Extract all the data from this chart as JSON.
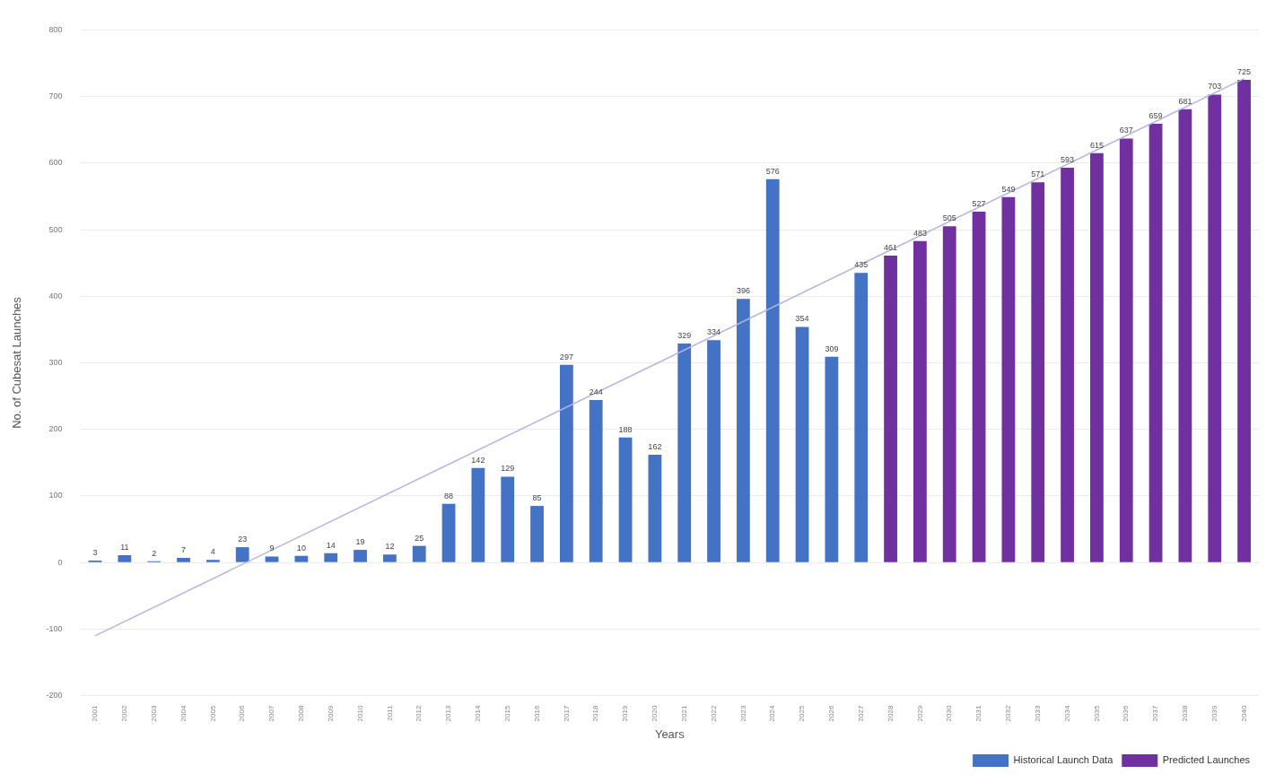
{
  "chart_data": {
    "type": "bar",
    "xlabel": "Years",
    "ylabel": "No. of Cubesat Launches",
    "categories": [
      "2001",
      "2002",
      "2003",
      "2004",
      "2005",
      "2006",
      "2007",
      "2008",
      "2009",
      "2010",
      "2011",
      "2012",
      "2013",
      "2014",
      "2015",
      "2016",
      "2017",
      "2018",
      "2019",
      "2020",
      "2021",
      "2022",
      "2023",
      "2024",
      "2025",
      "2026",
      "2027",
      "2028",
      "2029",
      "2030",
      "2031",
      "2032",
      "2033",
      "2034",
      "2035",
      "2036",
      "2037",
      "2038",
      "2039",
      "2040"
    ],
    "series": [
      {
        "name": "Historical Launch Data",
        "color": "#4472c4",
        "values": [
          3,
          11,
          2,
          7,
          4,
          23,
          9,
          10,
          14,
          19,
          12,
          25,
          88,
          142,
          129,
          85,
          297,
          244,
          188,
          162,
          329,
          334,
          396,
          576,
          354,
          309,
          435,
          null,
          null,
          null,
          null,
          null,
          null,
          null,
          null,
          null,
          null,
          null,
          null,
          null
        ],
        "value_labels": [
          "3",
          "11",
          "2",
          "7",
          "4",
          "23",
          "9",
          "10",
          "14",
          "19",
          "12",
          "25",
          "88",
          "142",
          "129",
          "85",
          "297",
          "244",
          "188",
          "162",
          "329",
          "334",
          "396",
          "576",
          "354",
          "309",
          "435",
          null,
          null,
          null,
          null,
          null,
          null,
          null,
          null,
          null,
          null,
          null,
          null,
          null
        ]
      },
      {
        "name": "Predicted Launches",
        "color": "#7030a0",
        "values": [
          null,
          null,
          null,
          null,
          null,
          null,
          null,
          null,
          null,
          null,
          null,
          null,
          null,
          null,
          null,
          null,
          null,
          null,
          null,
          null,
          null,
          null,
          null,
          null,
          null,
          null,
          null,
          461,
          483,
          505,
          527,
          549,
          571,
          593,
          615,
          637,
          659,
          681,
          703,
          725
        ],
        "value_labels": [
          null,
          null,
          null,
          null,
          null,
          null,
          null,
          null,
          null,
          null,
          null,
          null,
          null,
          null,
          null,
          null,
          null,
          null,
          null,
          null,
          null,
          null,
          null,
          null,
          null,
          null,
          null,
          "461",
          "483",
          "505",
          "527",
          "549",
          "571",
          "593",
          "615",
          "637",
          "659",
          "681",
          "703",
          "725"
        ]
      },
      {
        "type": "line",
        "color": "#b4b4e6",
        "values": [
          -110,
          null,
          null,
          null,
          null,
          null,
          null,
          null,
          null,
          null,
          null,
          null,
          null,
          null,
          null,
          null,
          null,
          null,
          null,
          null,
          null,
          null,
          null,
          null,
          null,
          null,
          null,
          null,
          null,
          null,
          null,
          null,
          null,
          null,
          null,
          null,
          null,
          null,
          null,
          727
        ]
      }
    ],
    "ylim": [
      -200,
      800
    ],
    "yticks": [
      -200,
      -100,
      0,
      100,
      200,
      300,
      400,
      500,
      600,
      700,
      800
    ],
    "grid": "y",
    "legend": "bottom right",
    "marker": "none"
  }
}
